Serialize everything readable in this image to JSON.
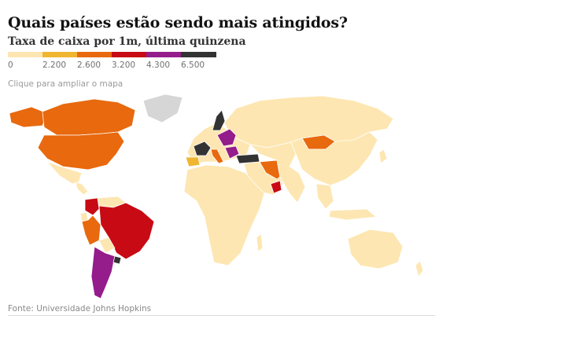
{
  "header": {
    "title": "Quais países estão sendo mais atingidos?",
    "subtitle": "Taxa de caixa por 1m, última quinzena"
  },
  "legend": {
    "items": [
      {
        "label": "0",
        "color": "#fde6b1"
      },
      {
        "label": "2.200",
        "color": "#f0b531"
      },
      {
        "label": "2.600",
        "color": "#e8690e"
      },
      {
        "label": "3.200",
        "color": "#c70a14"
      },
      {
        "label": "4.300",
        "color": "#951c8b"
      },
      {
        "label": "6.500",
        "color": "#333333"
      }
    ]
  },
  "map": {
    "hint": "Clique para ampliar o mapa",
    "no_data_color": "#d6d6d6",
    "regions": [
      {
        "id": "canada",
        "color": "#e8690e"
      },
      {
        "id": "usa",
        "color": "#e8690e"
      },
      {
        "id": "alaska",
        "color": "#e8690e"
      },
      {
        "id": "greenland",
        "color": "#d6d6d6"
      },
      {
        "id": "mexico",
        "color": "#fde6b1"
      },
      {
        "id": "central-america",
        "color": "#fde6b1"
      },
      {
        "id": "colombia",
        "color": "#c70a14"
      },
      {
        "id": "venezuela",
        "color": "#fde6b1"
      },
      {
        "id": "brazil",
        "color": "#c70a14"
      },
      {
        "id": "peru",
        "color": "#e8690e"
      },
      {
        "id": "ecuador",
        "color": "#fde6b1"
      },
      {
        "id": "bolivia",
        "color": "#fde6b1"
      },
      {
        "id": "argentina",
        "color": "#951c8b"
      },
      {
        "id": "uruguay",
        "color": "#333333"
      },
      {
        "id": "russia",
        "color": "#fde6b1"
      },
      {
        "id": "mongolia",
        "color": "#e8690e"
      },
      {
        "id": "china",
        "color": "#fde6b1"
      },
      {
        "id": "iran",
        "color": "#e8690e"
      },
      {
        "id": "oman",
        "color": "#c70a14"
      },
      {
        "id": "africa",
        "color": "#fde6b1"
      },
      {
        "id": "australia",
        "color": "#fde6b1"
      },
      {
        "id": "spain",
        "color": "#f0b531"
      },
      {
        "id": "france",
        "color": "#333333"
      },
      {
        "id": "scandinavia",
        "color": "#333333"
      },
      {
        "id": "central-europe",
        "color": "#951c8b"
      },
      {
        "id": "turkey",
        "color": "#333333"
      }
    ]
  },
  "footer": {
    "source": "Fonte: Universidade Johns Hopkins"
  }
}
